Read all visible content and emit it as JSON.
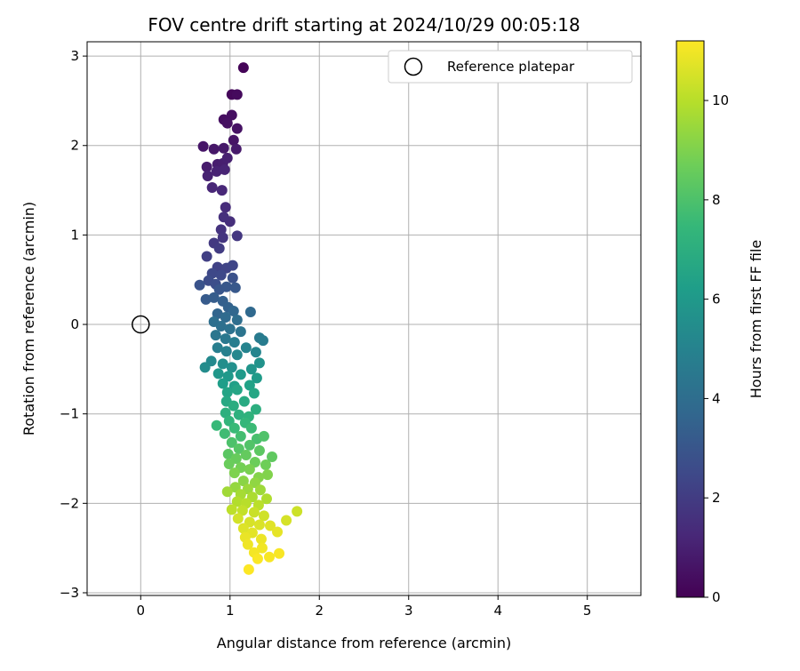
{
  "chart_data": {
    "type": "scatter",
    "title": "FOV centre drift starting at 2024/10/29 00:05:18",
    "xlabel": "Angular distance from reference (arcmin)",
    "ylabel": "Rotation from reference (arcmin)",
    "xlim": [
      -0.6,
      5.6
    ],
    "ylim": [
      -3.03,
      3.16
    ],
    "xticks": [
      0,
      1,
      2,
      3,
      4,
      5
    ],
    "yticks": [
      -3,
      -2,
      -1,
      0,
      1,
      2,
      3
    ],
    "grid": true,
    "legend": {
      "placement": "top-right",
      "entries": [
        "Reference platepar"
      ]
    },
    "reference_point": {
      "x": 0,
      "y": 0
    },
    "colorbar": {
      "label": "Hours from first FF file",
      "colormap": "viridis",
      "range": [
        0,
        11.2
      ],
      "ticks": [
        0,
        2,
        4,
        6,
        8,
        10
      ]
    },
    "colors": {
      "viridis": [
        "#440154",
        "#482878",
        "#3e4989",
        "#31688e",
        "#26828e",
        "#1f9e89",
        "#35b779",
        "#6ece58",
        "#b5de2b",
        "#fde725"
      ]
    },
    "points_note": "x, y in arcmin; c = hours from first FF file",
    "points": [
      {
        "x": 1.15,
        "y": 2.87,
        "c": 0.1
      },
      {
        "x": 1.02,
        "y": 2.57,
        "c": 0.2
      },
      {
        "x": 1.08,
        "y": 2.57,
        "c": 0.3
      },
      {
        "x": 0.93,
        "y": 2.29,
        "c": 0.4
      },
      {
        "x": 1.02,
        "y": 2.34,
        "c": 0.45
      },
      {
        "x": 0.97,
        "y": 2.25,
        "c": 0.5
      },
      {
        "x": 1.08,
        "y": 2.19,
        "c": 0.55
      },
      {
        "x": 1.04,
        "y": 2.06,
        "c": 0.6
      },
      {
        "x": 0.7,
        "y": 1.99,
        "c": 0.65
      },
      {
        "x": 0.82,
        "y": 1.96,
        "c": 0.7
      },
      {
        "x": 0.93,
        "y": 1.97,
        "c": 0.75
      },
      {
        "x": 1.07,
        "y": 1.96,
        "c": 0.8
      },
      {
        "x": 0.74,
        "y": 1.76,
        "c": 0.85
      },
      {
        "x": 0.86,
        "y": 1.79,
        "c": 0.9
      },
      {
        "x": 0.92,
        "y": 1.8,
        "c": 0.95
      },
      {
        "x": 0.97,
        "y": 1.86,
        "c": 1.0
      },
      {
        "x": 0.75,
        "y": 1.66,
        "c": 1.05
      },
      {
        "x": 0.85,
        "y": 1.71,
        "c": 1.1
      },
      {
        "x": 0.94,
        "y": 1.73,
        "c": 1.15
      },
      {
        "x": 0.8,
        "y": 1.53,
        "c": 1.2
      },
      {
        "x": 0.91,
        "y": 1.5,
        "c": 1.25
      },
      {
        "x": 0.95,
        "y": 1.31,
        "c": 1.4
      },
      {
        "x": 1.0,
        "y": 1.15,
        "c": 1.5
      },
      {
        "x": 0.93,
        "y": 1.2,
        "c": 1.55
      },
      {
        "x": 0.9,
        "y": 1.06,
        "c": 1.65
      },
      {
        "x": 0.92,
        "y": 0.97,
        "c": 1.75
      },
      {
        "x": 1.08,
        "y": 0.99,
        "c": 1.8
      },
      {
        "x": 0.82,
        "y": 0.91,
        "c": 1.9
      },
      {
        "x": 0.88,
        "y": 0.85,
        "c": 2.0
      },
      {
        "x": 0.74,
        "y": 0.76,
        "c": 2.1
      },
      {
        "x": 0.86,
        "y": 0.64,
        "c": 2.2
      },
      {
        "x": 0.96,
        "y": 0.63,
        "c": 2.3
      },
      {
        "x": 1.03,
        "y": 0.66,
        "c": 2.35
      },
      {
        "x": 0.8,
        "y": 0.57,
        "c": 2.45
      },
      {
        "x": 0.9,
        "y": 0.55,
        "c": 2.5
      },
      {
        "x": 0.76,
        "y": 0.49,
        "c": 2.6
      },
      {
        "x": 0.84,
        "y": 0.45,
        "c": 2.7
      },
      {
        "x": 1.03,
        "y": 0.52,
        "c": 2.8
      },
      {
        "x": 0.66,
        "y": 0.44,
        "c": 2.9
      },
      {
        "x": 0.88,
        "y": 0.39,
        "c": 3.0
      },
      {
        "x": 0.96,
        "y": 0.42,
        "c": 3.05
      },
      {
        "x": 1.06,
        "y": 0.41,
        "c": 3.1
      },
      {
        "x": 0.73,
        "y": 0.28,
        "c": 3.2
      },
      {
        "x": 0.82,
        "y": 0.3,
        "c": 3.3
      },
      {
        "x": 0.92,
        "y": 0.26,
        "c": 3.4
      },
      {
        "x": 0.98,
        "y": 0.19,
        "c": 3.5
      },
      {
        "x": 0.86,
        "y": 0.12,
        "c": 3.6
      },
      {
        "x": 1.04,
        "y": 0.15,
        "c": 3.7
      },
      {
        "x": 1.23,
        "y": 0.14,
        "c": 3.8
      },
      {
        "x": 0.95,
        "y": 0.08,
        "c": 3.9
      },
      {
        "x": 1.08,
        "y": 0.05,
        "c": 4.0
      },
      {
        "x": 0.82,
        "y": 0.03,
        "c": 4.05
      },
      {
        "x": 0.9,
        "y": -0.02,
        "c": 4.1
      },
      {
        "x": 1.0,
        "y": -0.05,
        "c": 4.2
      },
      {
        "x": 1.12,
        "y": -0.08,
        "c": 4.3
      },
      {
        "x": 0.84,
        "y": -0.12,
        "c": 4.4
      },
      {
        "x": 0.95,
        "y": -0.16,
        "c": 4.5
      },
      {
        "x": 1.33,
        "y": -0.15,
        "c": 4.6
      },
      {
        "x": 1.37,
        "y": -0.18,
        "c": 4.7
      },
      {
        "x": 1.05,
        "y": -0.2,
        "c": 4.75
      },
      {
        "x": 0.86,
        "y": -0.26,
        "c": 4.8
      },
      {
        "x": 0.96,
        "y": -0.3,
        "c": 4.9
      },
      {
        "x": 1.18,
        "y": -0.26,
        "c": 5.0
      },
      {
        "x": 1.29,
        "y": -0.31,
        "c": 5.1
      },
      {
        "x": 1.08,
        "y": -0.34,
        "c": 5.2
      },
      {
        "x": 0.79,
        "y": -0.41,
        "c": 5.3
      },
      {
        "x": 0.72,
        "y": -0.48,
        "c": 5.4
      },
      {
        "x": 0.92,
        "y": -0.44,
        "c": 5.5
      },
      {
        "x": 1.02,
        "y": -0.48,
        "c": 5.6
      },
      {
        "x": 1.33,
        "y": -0.43,
        "c": 5.7
      },
      {
        "x": 1.24,
        "y": -0.5,
        "c": 5.8
      },
      {
        "x": 0.87,
        "y": -0.55,
        "c": 5.9
      },
      {
        "x": 0.98,
        "y": -0.58,
        "c": 6.0
      },
      {
        "x": 1.12,
        "y": -0.56,
        "c": 6.05
      },
      {
        "x": 1.3,
        "y": -0.6,
        "c": 6.1
      },
      {
        "x": 0.92,
        "y": -0.66,
        "c": 6.2
      },
      {
        "x": 1.05,
        "y": -0.69,
        "c": 6.3
      },
      {
        "x": 1.22,
        "y": -0.68,
        "c": 6.4
      },
      {
        "x": 0.97,
        "y": -0.76,
        "c": 6.5
      },
      {
        "x": 1.08,
        "y": -0.73,
        "c": 6.55
      },
      {
        "x": 1.27,
        "y": -0.77,
        "c": 6.6
      },
      {
        "x": 0.96,
        "y": -0.86,
        "c": 6.7
      },
      {
        "x": 1.16,
        "y": -0.86,
        "c": 6.8
      },
      {
        "x": 1.04,
        "y": -0.91,
        "c": 6.9
      },
      {
        "x": 1.29,
        "y": -0.95,
        "c": 7.0
      },
      {
        "x": 0.95,
        "y": -0.99,
        "c": 7.05
      },
      {
        "x": 1.1,
        "y": -1.01,
        "c": 7.1
      },
      {
        "x": 1.21,
        "y": -1.03,
        "c": 7.2
      },
      {
        "x": 0.99,
        "y": -1.08,
        "c": 7.3
      },
      {
        "x": 1.17,
        "y": -1.1,
        "c": 7.4
      },
      {
        "x": 0.85,
        "y": -1.13,
        "c": 7.5
      },
      {
        "x": 1.05,
        "y": -1.16,
        "c": 7.55
      },
      {
        "x": 1.24,
        "y": -1.16,
        "c": 7.6
      },
      {
        "x": 0.94,
        "y": -1.22,
        "c": 7.7
      },
      {
        "x": 1.12,
        "y": -1.25,
        "c": 7.8
      },
      {
        "x": 1.3,
        "y": -1.28,
        "c": 7.9
      },
      {
        "x": 1.02,
        "y": -1.32,
        "c": 8.0
      },
      {
        "x": 1.38,
        "y": -1.25,
        "c": 8.05
      },
      {
        "x": 1.22,
        "y": -1.35,
        "c": 8.1
      },
      {
        "x": 1.1,
        "y": -1.39,
        "c": 8.2
      },
      {
        "x": 0.98,
        "y": -1.45,
        "c": 8.3
      },
      {
        "x": 1.33,
        "y": -1.41,
        "c": 8.35
      },
      {
        "x": 1.47,
        "y": -1.48,
        "c": 8.4
      },
      {
        "x": 1.18,
        "y": -1.46,
        "c": 8.5
      },
      {
        "x": 1.07,
        "y": -1.5,
        "c": 8.55
      },
      {
        "x": 0.99,
        "y": -1.56,
        "c": 8.6
      },
      {
        "x": 1.28,
        "y": -1.54,
        "c": 8.65
      },
      {
        "x": 1.4,
        "y": -1.57,
        "c": 8.7
      },
      {
        "x": 1.12,
        "y": -1.6,
        "c": 8.8
      },
      {
        "x": 1.22,
        "y": -1.62,
        "c": 8.9
      },
      {
        "x": 1.05,
        "y": -1.66,
        "c": 9.0
      },
      {
        "x": 1.42,
        "y": -1.68,
        "c": 9.05
      },
      {
        "x": 1.32,
        "y": -1.71,
        "c": 9.1
      },
      {
        "x": 1.15,
        "y": -1.75,
        "c": 9.2
      },
      {
        "x": 1.28,
        "y": -1.77,
        "c": 9.3
      },
      {
        "x": 1.06,
        "y": -1.82,
        "c": 9.4
      },
      {
        "x": 1.2,
        "y": -1.84,
        "c": 9.5
      },
      {
        "x": 1.34,
        "y": -1.85,
        "c": 9.55
      },
      {
        "x": 0.97,
        "y": -1.87,
        "c": 9.6
      },
      {
        "x": 1.12,
        "y": -1.9,
        "c": 9.7
      },
      {
        "x": 1.25,
        "y": -1.93,
        "c": 9.8
      },
      {
        "x": 1.41,
        "y": -1.95,
        "c": 9.85
      },
      {
        "x": 1.08,
        "y": -1.98,
        "c": 9.9
      },
      {
        "x": 1.18,
        "y": -2.0,
        "c": 10.0
      },
      {
        "x": 1.32,
        "y": -2.02,
        "c": 10.05
      },
      {
        "x": 1.02,
        "y": -2.07,
        "c": 10.1
      },
      {
        "x": 1.14,
        "y": -2.08,
        "c": 10.2
      },
      {
        "x": 1.27,
        "y": -2.1,
        "c": 10.3
      },
      {
        "x": 1.75,
        "y": -2.09,
        "c": 10.35
      },
      {
        "x": 1.38,
        "y": -2.14,
        "c": 10.4
      },
      {
        "x": 1.09,
        "y": -2.17,
        "c": 10.45
      },
      {
        "x": 1.63,
        "y": -2.19,
        "c": 10.5
      },
      {
        "x": 1.22,
        "y": -2.21,
        "c": 10.55
      },
      {
        "x": 1.33,
        "y": -2.24,
        "c": 10.6
      },
      {
        "x": 1.15,
        "y": -2.28,
        "c": 10.65
      },
      {
        "x": 1.45,
        "y": -2.25,
        "c": 10.7
      },
      {
        "x": 1.25,
        "y": -2.33,
        "c": 10.75
      },
      {
        "x": 1.53,
        "y": -2.32,
        "c": 10.8
      },
      {
        "x": 1.17,
        "y": -2.38,
        "c": 10.85
      },
      {
        "x": 1.35,
        "y": -2.4,
        "c": 10.9
      },
      {
        "x": 1.2,
        "y": -2.46,
        "c": 10.95
      },
      {
        "x": 1.36,
        "y": -2.5,
        "c": 11.0
      },
      {
        "x": 1.27,
        "y": -2.55,
        "c": 11.05
      },
      {
        "x": 1.44,
        "y": -2.6,
        "c": 11.1
      },
      {
        "x": 1.55,
        "y": -2.56,
        "c": 11.12
      },
      {
        "x": 1.31,
        "y": -2.62,
        "c": 11.15
      },
      {
        "x": 1.21,
        "y": -2.74,
        "c": 11.18
      }
    ]
  }
}
